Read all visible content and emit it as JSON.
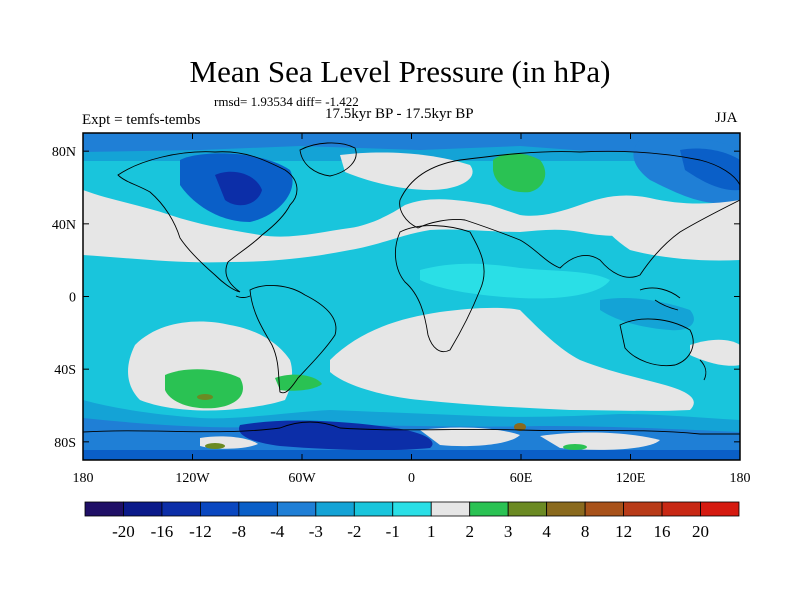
{
  "title": "Mean Sea Level Pressure (in hPa)",
  "stats": "rmsd= 1.93534  diff= -1.422",
  "expt_label": "Expt = temfs-tembs",
  "subtitle": "17.5kyr BP - 17.5kyr BP",
  "season": "JJA",
  "axes": {
    "lon_ticks": [
      {
        "value": -180,
        "label": "180"
      },
      {
        "value": -120,
        "label": "120W"
      },
      {
        "value": -60,
        "label": "60W"
      },
      {
        "value": 0,
        "label": "0"
      },
      {
        "value": 60,
        "label": "60E"
      },
      {
        "value": 120,
        "label": "120E"
      },
      {
        "value": 180,
        "label": "180"
      }
    ],
    "lat_ticks": [
      {
        "value": 80,
        "label": "80N"
      },
      {
        "value": 40,
        "label": "40N"
      },
      {
        "value": 0,
        "label": "0"
      },
      {
        "value": -40,
        "label": "40S"
      },
      {
        "value": -80,
        "label": "80S"
      }
    ],
    "lon_range": [
      -180,
      180
    ],
    "lat_range": [
      -90,
      90
    ]
  },
  "colorbar": {
    "colors": [
      "#1f0f66",
      "#0b1a8a",
      "#0c2ea8",
      "#0a47c0",
      "#0a5fc8",
      "#1f7fd6",
      "#14a3d6",
      "#19c5dc",
      "#2adfe6",
      "#e6e6e6",
      "#2ac253",
      "#6b8a23",
      "#8a6a1e",
      "#a8521a",
      "#b83b18",
      "#c82814",
      "#d51a10"
    ],
    "labels": [
      "-20",
      "-16",
      "-12",
      "-8",
      "-4",
      "-3",
      "-2",
      "-1",
      "1",
      "2",
      "3",
      "4",
      "8",
      "12",
      "16",
      "20"
    ]
  },
  "colors": {
    "ocean_base": "#19c5dc",
    "light_neutral": "#e6e6e6",
    "cyan_light": "#2adfe6",
    "blue_mid": "#14a3d6",
    "blue_dark": "#1f7fd6",
    "blue_deep": "#0a5fc8",
    "navy": "#0c2ea8",
    "green": "#2ac253",
    "olive": "#6b8a23",
    "brown": "#8a6a1e"
  }
}
